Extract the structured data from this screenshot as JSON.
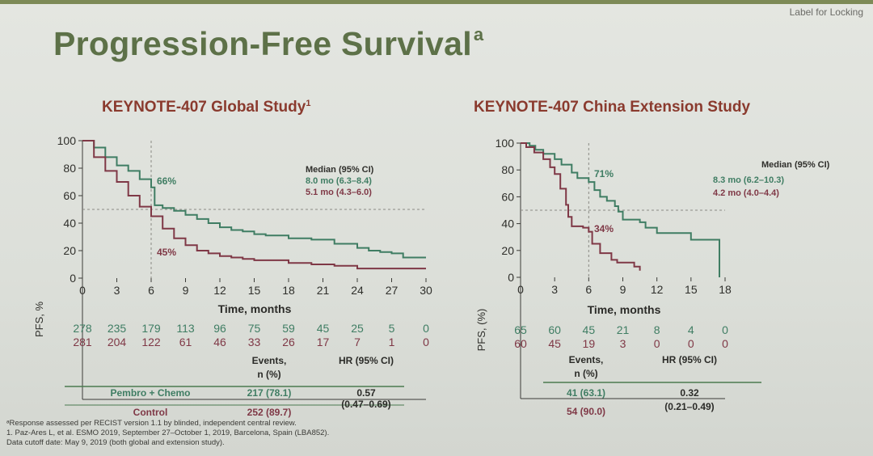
{
  "header": {
    "label": "Label for Locking",
    "title": "Progression-Free Survival",
    "title_sup": "a"
  },
  "global": {
    "title": "KEYNOTE-407 Global Study",
    "title_sup": "1",
    "median_header": "Median (95% CI)",
    "median_pembro": "8.0 mo (6.3–8.4)",
    "median_control": "5.1 mo (4.3–6.0)",
    "pct_pembro": "66%",
    "pct_control": "45%",
    "risk_pembro": [
      "278",
      "235",
      "179",
      "113",
      "96",
      "75",
      "59",
      "45",
      "25",
      "5",
      "0"
    ],
    "risk_control": [
      "281",
      "204",
      "122",
      "61",
      "46",
      "33",
      "26",
      "17",
      "7",
      "1",
      "0"
    ],
    "events_header": [
      "Events,",
      "n (%)"
    ],
    "hr_header": "HR (95% CI)",
    "row_pembro_label": "Pembro + Chemo",
    "row_pembro_events": "217 (78.1)",
    "row_control_label": "Control",
    "row_control_events": "252 (89.7)",
    "hr": "0.57",
    "hr_ci": "(0.47–0.69)"
  },
  "china": {
    "title": "KEYNOTE-407 China Extension Study",
    "median_header": "Median (95% CI)",
    "median_pembro": "8.3 mo (6.2–10.3)",
    "median_control": "4.2 mo (4.0–4.4)",
    "pct_pembro": "71%",
    "pct_control": "34%",
    "risk_pembro": [
      "65",
      "60",
      "45",
      "21",
      "8",
      "4",
      "0"
    ],
    "risk_control": [
      "60",
      "45",
      "19",
      "3",
      "0",
      "0",
      "0"
    ],
    "events_header": [
      "Events,",
      "n (%)"
    ],
    "hr_header": "HR (95% CI)",
    "row_pembro_events": "41 (63.1)",
    "row_control_events": "54 (90.0)",
    "hr": "0.32",
    "hr_ci": "(0.21–0.49)"
  },
  "footnotes": [
    "ᵃResponse assessed per RECIST version 1.1 by blinded, independent central review.",
    "1. Paz-Ares L, et al. ESMO 2019, September 27–October 1, 2019, Barcelona, Spain (LBA852).",
    "Data cutoff date: May 9, 2019 (both global and extension study)."
  ],
  "colors": {
    "pembro": "#3f7d63",
    "control": "#7f3846",
    "title": "#5d7148",
    "subtitle": "#8a3a2e"
  },
  "chart_data": [
    {
      "type": "line",
      "title": "KEYNOTE-407 Global Study",
      "xlabel": "Time, months",
      "ylabel": "PFS, %",
      "xlim": [
        0,
        30
      ],
      "ylim": [
        0,
        100
      ],
      "xticks": [
        0,
        3,
        6,
        9,
        12,
        15,
        18,
        21,
        24,
        27,
        30
      ],
      "yticks": [
        0,
        20,
        40,
        60,
        80,
        100
      ],
      "reference_lines": {
        "x": 6,
        "y": 50
      },
      "series": [
        {
          "name": "Pembro + Chemo",
          "x": [
            0,
            1,
            2,
            3,
            4,
            5,
            6,
            6.3,
            7,
            8,
            9,
            10,
            11,
            12,
            13,
            14,
            15,
            16,
            18,
            20,
            22,
            24,
            25,
            26,
            27,
            28,
            29,
            30
          ],
          "y": [
            100,
            95,
            88,
            82,
            78,
            72,
            66,
            53,
            51,
            49,
            46,
            43,
            40,
            37,
            35,
            34,
            32,
            31,
            29,
            28,
            25,
            22,
            20,
            19,
            18,
            15,
            15,
            15
          ]
        },
        {
          "name": "Control",
          "x": [
            0,
            1,
            2,
            3,
            4,
            5,
            6,
            7,
            8,
            9,
            10,
            11,
            12,
            13,
            14,
            15,
            16,
            18,
            20,
            22,
            24,
            26,
            28,
            30
          ],
          "y": [
            100,
            88,
            78,
            70,
            60,
            52,
            45,
            36,
            29,
            24,
            20,
            18,
            16,
            15,
            14,
            13,
            13,
            11,
            10,
            9,
            7,
            7,
            7,
            7
          ]
        }
      ]
    },
    {
      "type": "line",
      "title": "KEYNOTE-407 China Extension Study",
      "xlabel": "Time, months",
      "ylabel": "PFS, (%)",
      "xlim": [
        0,
        18
      ],
      "ylim": [
        0,
        100
      ],
      "xticks": [
        0,
        3,
        6,
        9,
        12,
        15,
        18
      ],
      "yticks": [
        0,
        20,
        40,
        60,
        80,
        100
      ],
      "reference_lines": {
        "x": 6,
        "y": 50
      },
      "series": [
        {
          "name": "Pembro + Chemo",
          "x": [
            0,
            0.8,
            1.3,
            2,
            3,
            3.6,
            4.5,
            5,
            6,
            6.5,
            7,
            7.6,
            8.3,
            8.6,
            9,
            10,
            10.5,
            11,
            12,
            15,
            16,
            17.5,
            17.5
          ],
          "y": [
            100,
            98,
            95,
            92,
            88,
            84,
            78,
            74,
            71,
            65,
            60,
            57,
            53,
            49,
            43,
            43,
            41,
            37,
            33,
            28,
            28,
            28,
            0
          ]
        },
        {
          "name": "Control",
          "x": [
            0,
            0.5,
            1.2,
            2,
            2.6,
            3,
            3.5,
            4,
            4.2,
            4.5,
            5.5,
            6,
            6.3,
            7,
            8,
            8.5,
            9,
            10,
            10.3,
            10.5
          ],
          "y": [
            100,
            97,
            93,
            88,
            82,
            77,
            66,
            54,
            45,
            38,
            37,
            34,
            25,
            18,
            13,
            11,
            11,
            8,
            8,
            5
          ]
        }
      ]
    }
  ]
}
